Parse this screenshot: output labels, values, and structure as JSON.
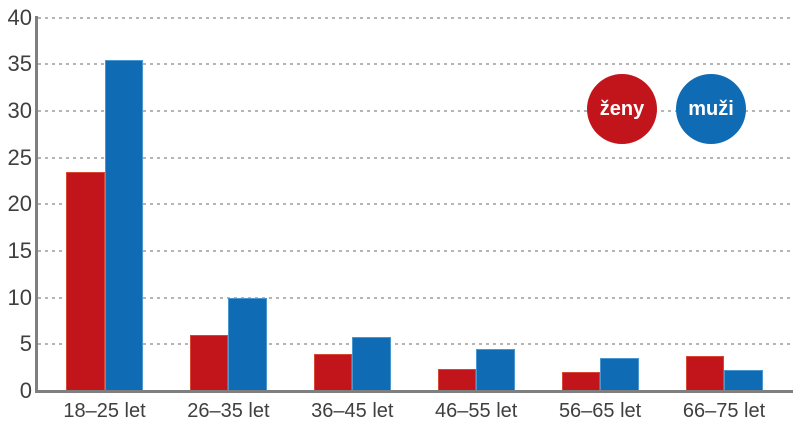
{
  "chart_data": {
    "type": "bar",
    "title": "",
    "xlabel": "",
    "ylabel": "",
    "categories": [
      "18–25 let",
      "26–35 let",
      "36–45 let",
      "46–55 let",
      "56–65 let",
      "66–75 let"
    ],
    "series": [
      {
        "name": "ženy",
        "color": "#c2151b",
        "edge_color": "#d84734",
        "values": [
          23.5,
          6,
          4,
          2.4,
          2,
          3.7
        ]
      },
      {
        "name": "muži",
        "color": "#0f6cb4",
        "edge_color": "#4a97d0",
        "values": [
          35.5,
          10,
          5.8,
          4.5,
          3.5,
          2.2
        ]
      }
    ],
    "ylim": [
      0,
      40
    ],
    "yticks": [
      0,
      5,
      10,
      15,
      20,
      25,
      30,
      35,
      40
    ],
    "grid": "horizontal-dashed",
    "legend_position": "top-right",
    "legend_shape": "circle"
  },
  "colors": {
    "background": "#ffffff",
    "axis": "#7f7f7f",
    "gridline": "#b5b5b5",
    "tick_text": "#3f3f3f",
    "legend_text": "#ffffff"
  }
}
